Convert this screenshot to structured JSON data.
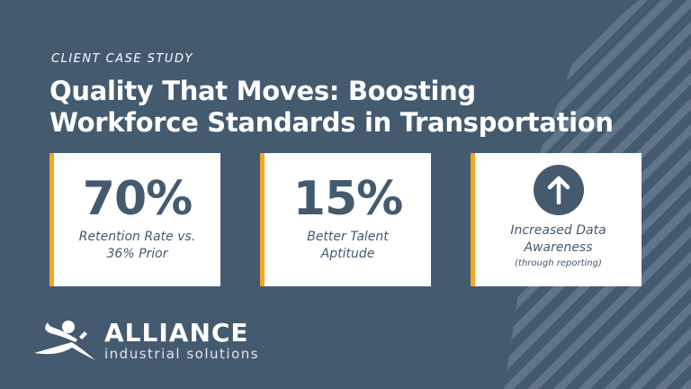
{
  "kicker": "CLIENT CASE STUDY",
  "title_line1": "Quality That Moves: Boosting",
  "title_line2": "Workforce Standards in Transportation",
  "cards": [
    {
      "value": "70%",
      "label_line1": "Retention Rate vs.",
      "label_line2": "36% Prior"
    },
    {
      "value": "15%",
      "label_line1": "Better Talent",
      "label_line2": "Aptitude"
    },
    {
      "icon": "arrow-up-icon",
      "label_line1": "Increased Data",
      "label_line2": "Awareness",
      "note": "(through reporting)"
    }
  ],
  "logo": {
    "name": "ALLIANCE",
    "tagline": "industrial solutions"
  },
  "colors": {
    "background": "#445a6f",
    "accent": "#f5a623",
    "card": "#ffffff"
  }
}
